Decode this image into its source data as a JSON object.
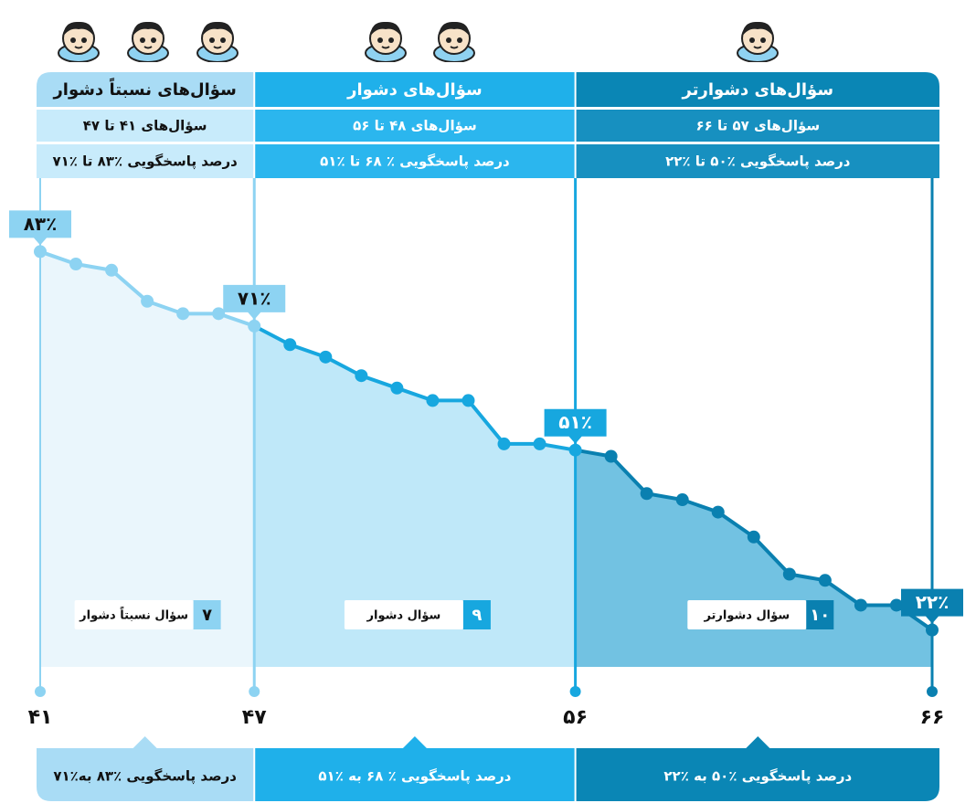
{
  "chart_data": {
    "type": "line",
    "x": [
      41,
      42,
      43,
      44,
      45,
      46,
      47,
      48,
      49,
      50,
      51,
      52,
      53,
      54,
      55,
      56,
      57,
      58,
      59,
      60,
      61,
      62,
      63,
      64,
      65,
      66
    ],
    "values": [
      83,
      81,
      80,
      75,
      73,
      73,
      71,
      68,
      66,
      63,
      61,
      59,
      59,
      52,
      52,
      51,
      50,
      44,
      43,
      41,
      37,
      31,
      30,
      26,
      26,
      22
    ],
    "value_labels": [
      "۸۳٪",
      null,
      null,
      null,
      null,
      null,
      "۷۱٪",
      null,
      null,
      null,
      null,
      null,
      null,
      null,
      null,
      "۵۱٪",
      null,
      null,
      null,
      null,
      null,
      null,
      null,
      null,
      null,
      "۲۲٪"
    ],
    "xlim": [
      41,
      66
    ],
    "ylim": [
      0,
      100
    ],
    "xticks": [
      {
        "value": 41,
        "label": "۴۱"
      },
      {
        "value": 47,
        "label": "۴۷"
      },
      {
        "value": 56,
        "label": "۵۶"
      },
      {
        "value": 66,
        "label": "۶۶"
      }
    ],
    "groups": [
      {
        "title": "سؤال‌های نسبتاً دشوار",
        "range": "سؤال‌های ۴۱ تا ۴۷",
        "percent": "درصد پاسخگویی ٪۸۳ تا ٪۷۱",
        "count": "۷",
        "count_label": "سؤال نسبتاً دشوار",
        "summary": "درصد پاسخگویی ٪۸۳ به٪۷۱",
        "color": "#a9dcf5",
        "row_color": "#c8ebfb",
        "text_color": "#111111",
        "line_color": "#8dd3f2",
        "fill": "#eaf6fc"
      },
      {
        "title": "سؤال‌های دشوار",
        "range": "سؤال‌های ۴۸ تا ۵۶",
        "percent": "درصد پاسخگویی ٪ ۶۸ تا ٪۵۱",
        "count": "۹",
        "count_label": "سؤال دشوار",
        "summary": "درصد پاسخگویی ٪ ۶۸ به ٪۵۱",
        "color": "#1fb0ea",
        "row_color": "#2bb6ee",
        "text_color": "#ffffff",
        "line_color": "#17a7df",
        "fill": "#bfe8f9"
      },
      {
        "title": "سؤال‌های دشوارتر",
        "range": "سؤال‌های ۵۷ تا ۶۶",
        "percent": "درصد پاسخگویی ٪۵۰ تا ٪۲۲",
        "count": "۱۰",
        "count_label": "سؤال دشوارتر",
        "summary": "درصد پاسخگویی ٪۵۰ به ٪۲۲",
        "color": "#0a86b5",
        "row_color": "#1790c0",
        "text_color": "#ffffff",
        "line_color": "#0a80b0",
        "fill": "#72c2e2"
      }
    ]
  }
}
